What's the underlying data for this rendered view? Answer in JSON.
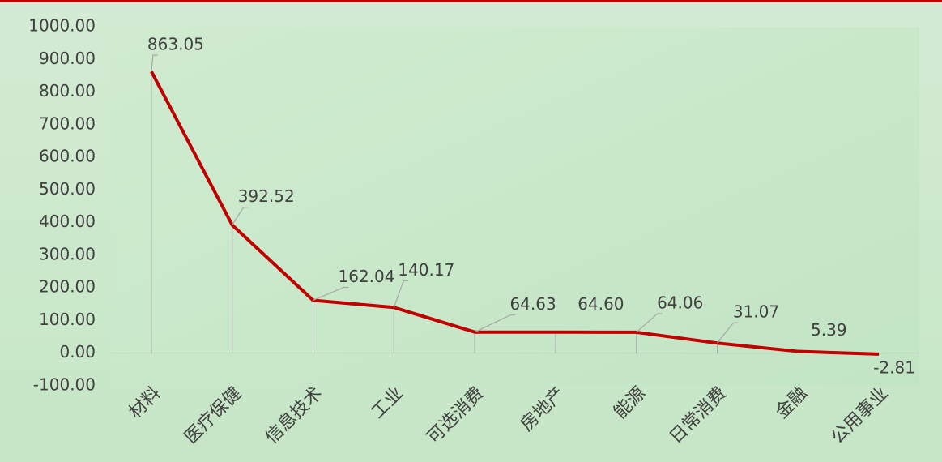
{
  "chart_data": {
    "type": "line",
    "categories": [
      "材料",
      "医疗保健",
      "信息技术",
      "工业",
      "可选消费",
      "房地产",
      "能源",
      "日常消费",
      "金融",
      "公用事业"
    ],
    "values": [
      863.05,
      392.52,
      162.04,
      140.17,
      64.63,
      64.6,
      64.06,
      31.07,
      5.39,
      -2.81
    ],
    "value_labels": [
      "863.05",
      "392.52",
      "162.04",
      "140.17",
      "64.63",
      "64.60",
      "64.06",
      "31.07",
      "5.39",
      "-2.81"
    ],
    "color": "#c00000",
    "ylim": [
      -100,
      1000
    ],
    "yticks": [
      {
        "value": -100,
        "label": "-100.00"
      },
      {
        "value": 0,
        "label": "0.00"
      },
      {
        "value": 100,
        "label": "100.00"
      },
      {
        "value": 200,
        "label": "200.00"
      },
      {
        "value": 300,
        "label": "300.00"
      },
      {
        "value": 400,
        "label": "400.00"
      },
      {
        "value": 500,
        "label": "500.00"
      },
      {
        "value": 600,
        "label": "600.00"
      },
      {
        "value": 700,
        "label": "700.00"
      },
      {
        "value": 800,
        "label": "800.00"
      },
      {
        "value": 900,
        "label": "900.00"
      },
      {
        "value": 1000,
        "label": "1000.00"
      }
    ],
    "grid": false
  }
}
